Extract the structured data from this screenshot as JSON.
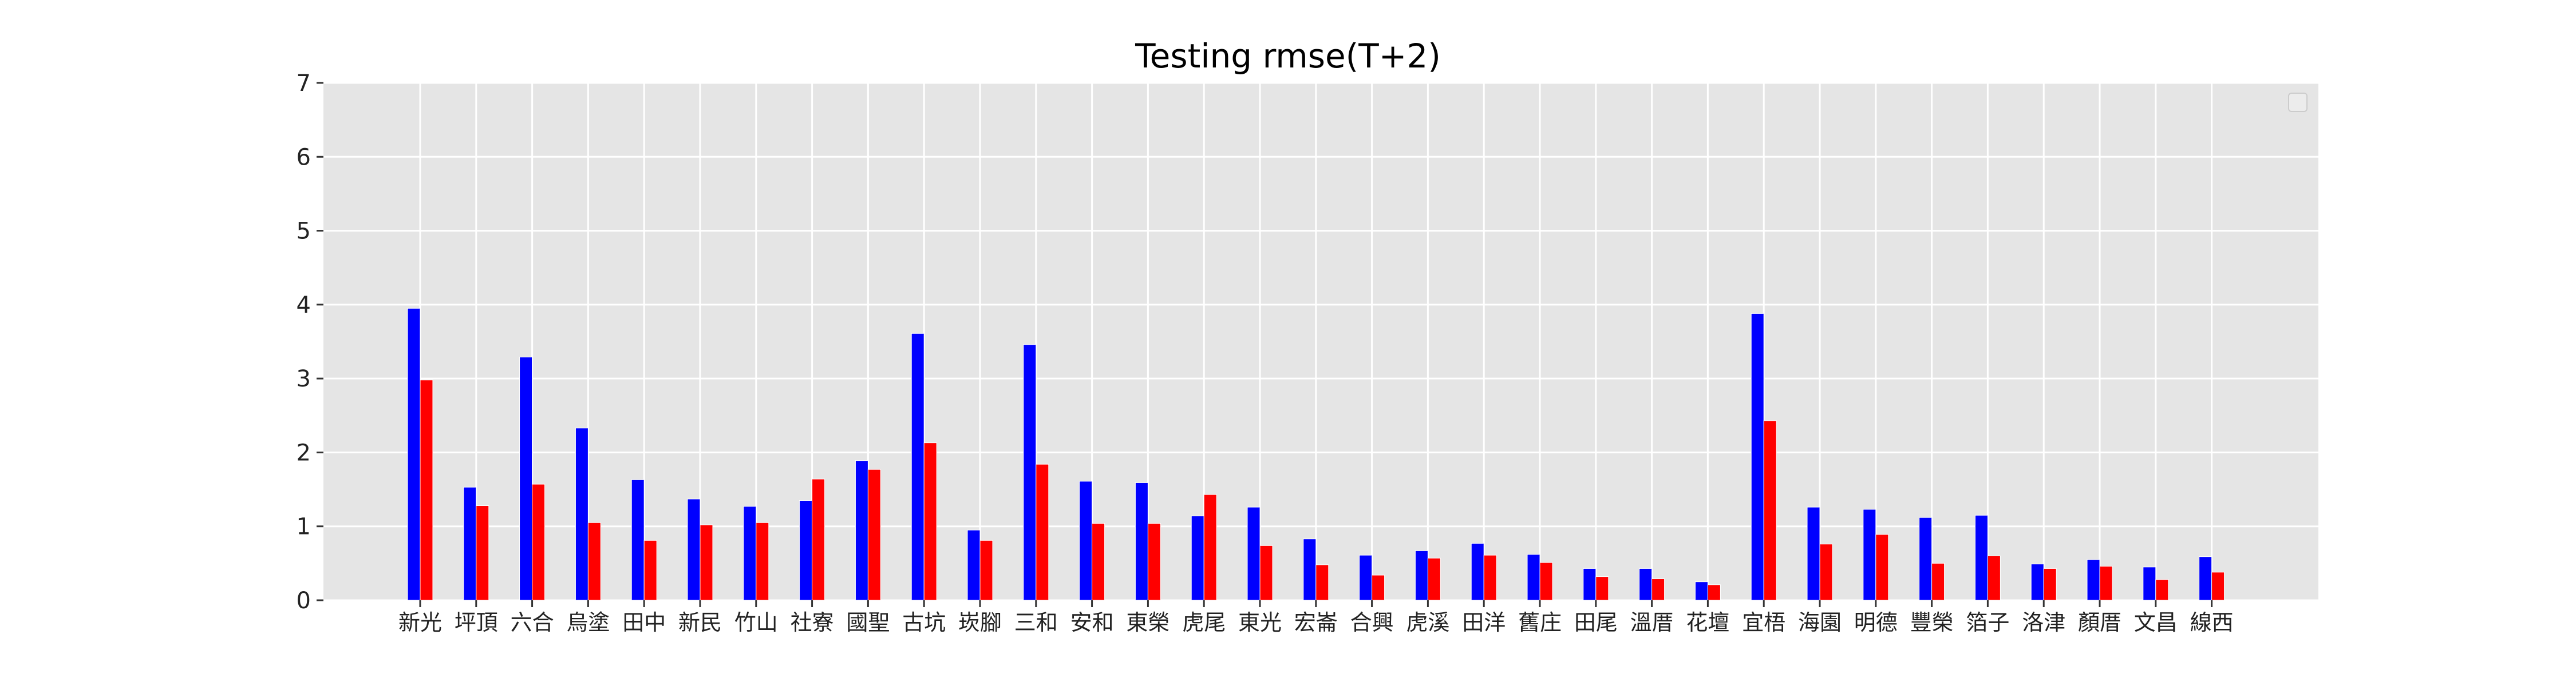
{
  "chart_data": {
    "type": "bar",
    "title": "Testing rmse(T+2)",
    "xlabel": "",
    "ylabel": "",
    "ylim": [
      0,
      7
    ],
    "yticks": [
      0,
      1,
      2,
      3,
      4,
      5,
      6,
      7
    ],
    "grid": true,
    "legend": "top-right",
    "categories": [
      "新光",
      "坪頂",
      "六合",
      "烏塗",
      "田中",
      "新民",
      "竹山",
      "社寮",
      "國聖",
      "古坑",
      "崁腳",
      "三和",
      "安和",
      "東榮",
      "虎尾",
      "東光",
      "宏崙",
      "合興",
      "虎溪",
      "田洋",
      "舊庄",
      "田尾",
      "溫厝",
      "花壇",
      "宜梧",
      "海園",
      "明德",
      "豐榮",
      "箔子",
      "洛津",
      "顏厝",
      "文昌",
      "線西"
    ],
    "series": [
      {
        "color": "#0000ff",
        "values": [
          3.95,
          1.53,
          3.29,
          2.33,
          1.63,
          1.37,
          1.27,
          1.35,
          1.89,
          3.61,
          0.95,
          3.46,
          1.61,
          1.59,
          1.14,
          1.26,
          0.83,
          0.61,
          0.67,
          0.77,
          0.62,
          0.43,
          0.43,
          0.25,
          3.88,
          1.26,
          1.23,
          1.12,
          1.15,
          0.49,
          0.55,
          0.45,
          0.59
        ]
      },
      {
        "color": "#ff0000",
        "values": [
          2.98,
          1.28,
          1.57,
          1.05,
          0.81,
          1.02,
          1.05,
          1.64,
          1.77,
          2.13,
          0.81,
          1.84,
          1.04,
          1.04,
          1.43,
          0.74,
          0.48,
          0.34,
          0.57,
          0.61,
          0.51,
          0.32,
          0.29,
          0.21,
          2.43,
          0.76,
          0.89,
          0.5,
          0.6,
          0.43,
          0.46,
          0.28,
          0.38
        ]
      }
    ],
    "colors": {
      "plot_background": "#e5e5e5",
      "grid": "#ffffff"
    }
  }
}
